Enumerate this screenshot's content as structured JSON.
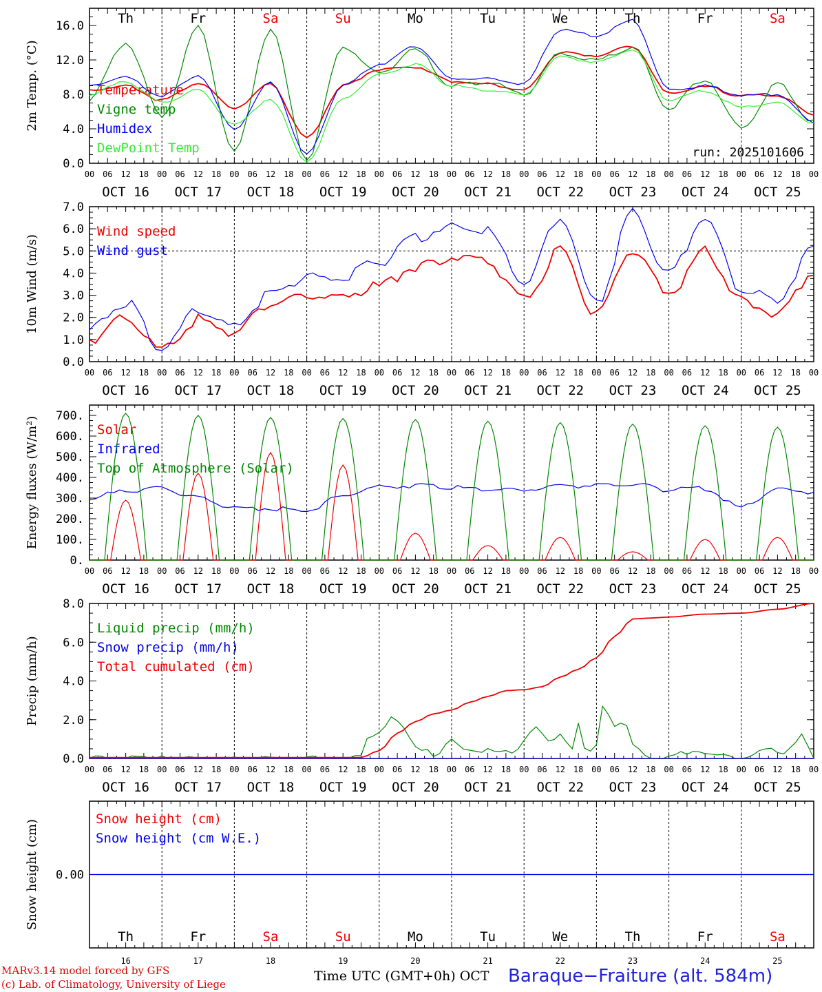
{
  "chart_data": [
    {
      "type": "line",
      "panel": "temperature",
      "ylabel": "2m Temp. (°C)",
      "ylim": [
        0,
        18
      ],
      "yticks": [
        "0.0",
        "4.0",
        "8.0",
        "12.0",
        "16.0"
      ],
      "x_hours": [
        0,
        12,
        24,
        36,
        48,
        60,
        72,
        84,
        96,
        108,
        120,
        132,
        144,
        156,
        168,
        180,
        192,
        204,
        216,
        228,
        240
      ],
      "series": [
        {
          "name": "Temperature",
          "color": "#ee0000",
          "values": [
            8.5,
            9.0,
            7.3,
            9.3,
            6.4,
            9.2,
            2.9,
            9.0,
            10.9,
            11.2,
            9.5,
            9.2,
            8.5,
            12.9,
            12.5,
            13.6,
            8.1,
            8.9,
            7.8,
            7.9,
            5.6
          ]
        },
        {
          "name": "Vigne temp",
          "color": "#008800",
          "values": [
            7.5,
            14.0,
            5.5,
            15.8,
            1.2,
            15.6,
            0.4,
            13.5,
            10.5,
            13.2,
            9.0,
            9.5,
            8.0,
            12.7,
            12.0,
            13.4,
            6.5,
            9.8,
            4.0,
            9.2,
            4.8
          ]
        },
        {
          "name": "Humidex",
          "color": "#0000ee",
          "values": [
            9.0,
            10.0,
            7.8,
            10.2,
            4.0,
            9.4,
            1.0,
            9.0,
            11.5,
            13.6,
            9.8,
            9.8,
            9.2,
            15.5,
            14.8,
            16.6,
            8.5,
            9.0,
            7.9,
            8.0,
            4.8
          ]
        },
        {
          "name": "DewPoint Temp",
          "color": "#33ee33",
          "values": [
            8.0,
            9.5,
            7.0,
            8.5,
            4.5,
            7.5,
            0.2,
            7.5,
            10.3,
            11.5,
            9.0,
            8.5,
            8.0,
            12.4,
            11.7,
            13.2,
            7.3,
            8.4,
            6.5,
            7.0,
            4.7
          ]
        }
      ],
      "run": "run: 2025101606"
    },
    {
      "type": "line",
      "panel": "wind",
      "ylabel": "10m Wind (m/s)",
      "ylim": [
        0,
        7
      ],
      "yticks": [
        "0.0",
        "1.0",
        "2.0",
        "3.0",
        "4.0",
        "5.0",
        "6.0",
        "7.0"
      ],
      "reference_line": 5.0,
      "x_hours": [
        0,
        12,
        24,
        36,
        48,
        60,
        72,
        84,
        96,
        108,
        120,
        132,
        144,
        156,
        168,
        180,
        192,
        204,
        216,
        228,
        240
      ],
      "series": [
        {
          "name": "Wind speed",
          "color": "#ee0000",
          "values": [
            1.0,
            2.0,
            0.5,
            1.9,
            1.3,
            2.6,
            3.0,
            3.0,
            3.4,
            4.3,
            4.7,
            4.5,
            2.8,
            5.0,
            2.1,
            5.1,
            3.1,
            5.0,
            2.8,
            2.1,
            4.0
          ]
        },
        {
          "name": "Wind gust",
          "color": "#0000ee",
          "values": [
            1.4,
            2.7,
            0.6,
            2.4,
            1.6,
            3.1,
            3.8,
            3.8,
            4.5,
            5.6,
            6.1,
            5.9,
            3.5,
            6.5,
            2.6,
            6.7,
            4.0,
            6.5,
            3.2,
            2.8,
            5.2
          ]
        }
      ]
    },
    {
      "type": "line",
      "panel": "energy",
      "ylabel": "Energy fluxes (W/m²)",
      "ylim": [
        0,
        750
      ],
      "yticks": [
        "0.",
        "100.",
        "200.",
        "300.",
        "400.",
        "500.",
        "600.",
        "700."
      ],
      "series": [
        {
          "name": "Solar",
          "color": "#ee0000",
          "peaks": [
            290,
            420,
            520,
            460,
            130,
            70,
            110,
            40,
            100,
            110
          ]
        },
        {
          "name": "Infrared",
          "color": "#0000ee",
          "x_hours": [
            0,
            12,
            24,
            36,
            48,
            60,
            72,
            84,
            96,
            108,
            120,
            132,
            144,
            156,
            168,
            180,
            192,
            204,
            216,
            228,
            240
          ],
          "values": [
            300,
            335,
            345,
            300,
            255,
            250,
            240,
            310,
            355,
            360,
            350,
            345,
            340,
            360,
            360,
            365,
            340,
            345,
            255,
            340,
            330
          ]
        },
        {
          "name": "Top of Atmosphere (Solar)",
          "color": "#008800",
          "peaks": [
            710,
            700,
            690,
            685,
            680,
            672,
            665,
            658,
            650,
            643
          ]
        }
      ]
    },
    {
      "type": "line",
      "panel": "precip",
      "ylabel": "Precip (mm/h)",
      "ylim": [
        0,
        8
      ],
      "yticks": [
        "0.0",
        "2.0",
        "4.0",
        "6.0",
        "8.0"
      ],
      "series": [
        {
          "name": "Liquid precip (mm/h)",
          "color": "#008800",
          "x_hours": [
            0,
            22,
            24,
            26,
            60,
            90,
            92,
            96,
            100,
            104,
            108,
            112,
            114,
            120,
            124,
            130,
            140,
            148,
            152,
            156,
            160,
            162,
            164,
            166,
            168,
            170,
            174,
            178,
            180,
            186,
            190,
            200,
            210,
            216,
            220,
            226,
            230,
            236,
            240
          ],
          "values": [
            0,
            0,
            0.2,
            0,
            0,
            0,
            0.9,
            1.4,
            2.2,
            1.5,
            0.5,
            0.6,
            0.1,
            0.9,
            0.5,
            0.4,
            0.3,
            1.6,
            0.8,
            1.3,
            0.5,
            1.8,
            0.5,
            0.3,
            0.6,
            2.8,
            1.8,
            1.6,
            0.6,
            0.1,
            0,
            0.4,
            0.1,
            0,
            0.2,
            0.5,
            0.3,
            1.2,
            0
          ]
        },
        {
          "name": "Snow precip (mm/h)",
          "color": "#0000ee",
          "x_hours": [
            0,
            240
          ],
          "values": [
            0,
            0
          ]
        },
        {
          "name": "Total cumulated (cm)",
          "color": "#ee0000",
          "x_hours": [
            0,
            90,
            96,
            102,
            108,
            114,
            120,
            126,
            132,
            138,
            144,
            150,
            156,
            162,
            168,
            174,
            180,
            186,
            192,
            204,
            216,
            228,
            240
          ],
          "values": [
            0.05,
            0.05,
            0.4,
            1.3,
            1.9,
            2.3,
            2.5,
            2.9,
            3.2,
            3.5,
            3.55,
            3.7,
            4.2,
            4.6,
            5.2,
            6.3,
            7.2,
            7.25,
            7.3,
            7.45,
            7.5,
            7.7,
            8.0
          ]
        }
      ]
    },
    {
      "type": "line",
      "panel": "snow",
      "ylabel": "Snow height (cm)",
      "yticks": [
        "0.00"
      ],
      "series": [
        {
          "name": "Snow height (cm)",
          "color": "#ee0000",
          "values": [
            0,
            0
          ]
        },
        {
          "name": "Snow height (cm W.E.)",
          "color": "#0000ee",
          "values": [
            0,
            0
          ]
        }
      ]
    }
  ],
  "days": [
    {
      "abbr": "Th",
      "date": "OCT 16",
      "num": "16",
      "weekend": false
    },
    {
      "abbr": "Fr",
      "date": "OCT 17",
      "num": "17",
      "weekend": false
    },
    {
      "abbr": "Sa",
      "date": "OCT 18",
      "num": "18",
      "weekend": true
    },
    {
      "abbr": "Su",
      "date": "OCT 19",
      "num": "19",
      "weekend": true
    },
    {
      "abbr": "Mo",
      "date": "OCT 20",
      "num": "20",
      "weekend": false
    },
    {
      "abbr": "Tu",
      "date": "OCT 21",
      "num": "21",
      "weekend": false
    },
    {
      "abbr": "We",
      "date": "OCT 22",
      "num": "22",
      "weekend": false
    },
    {
      "abbr": "Th",
      "date": "OCT 23",
      "num": "23",
      "weekend": false
    },
    {
      "abbr": "Fr",
      "date": "OCT 24",
      "num": "24",
      "weekend": false
    },
    {
      "abbr": "Sa",
      "date": "OCT 25",
      "num": "25",
      "weekend": true
    }
  ],
  "hour_ticks": [
    "00",
    "06",
    "12",
    "18"
  ],
  "colors": {
    "weekend": "#ee0000",
    "weekday": "#000000"
  },
  "footer": {
    "credit_line1": "MARv3.14 model forced by GFS",
    "credit_line2": "(c) Lab. of Climatology, University of Liege",
    "time_label": "Time UTC (GMT+0h) OCT",
    "station": "Baraque−Fraiture (alt. 584m)"
  }
}
